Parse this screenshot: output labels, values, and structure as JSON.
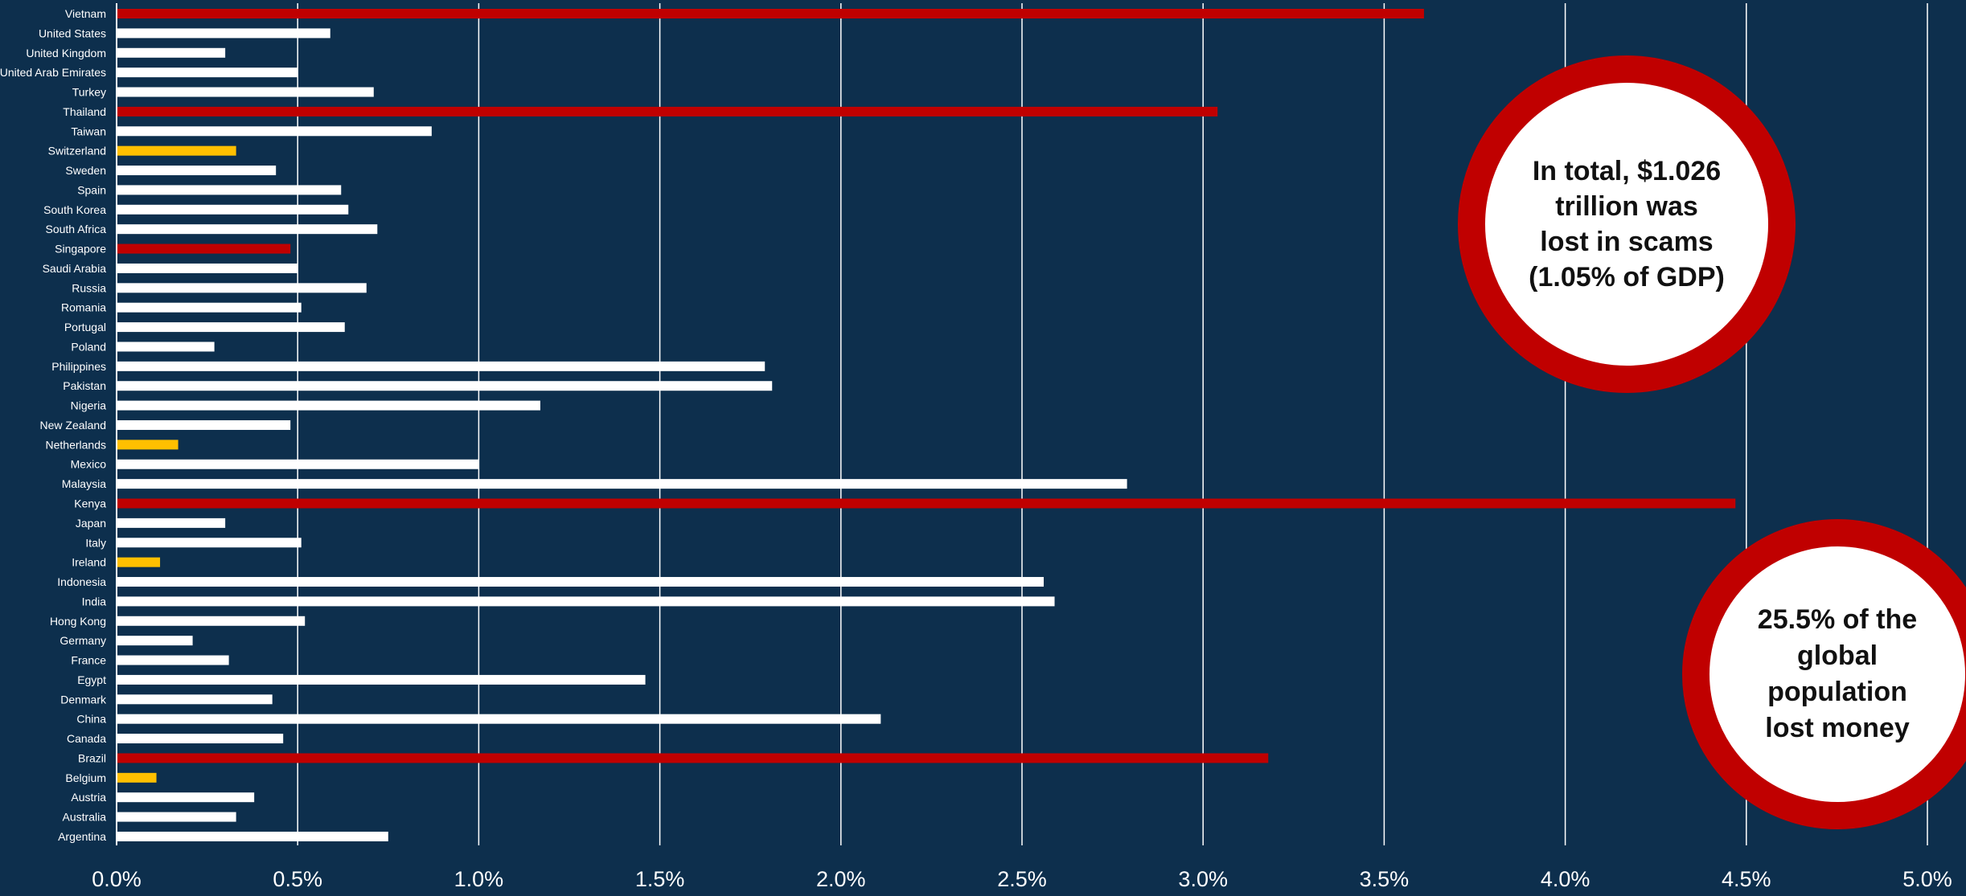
{
  "chart_data": {
    "type": "bar",
    "orientation": "horizontal",
    "categories": [
      "Vietnam",
      "United States",
      "United Kingdom",
      "United Arab Emirates",
      "Turkey",
      "Thailand",
      "Taiwan",
      "Switzerland",
      "Sweden",
      "Spain",
      "South Korea",
      "South Africa",
      "Singapore",
      "Saudi Arabia",
      "Russia",
      "Romania",
      "Portugal",
      "Poland",
      "Philippines",
      "Pakistan",
      "Nigeria",
      "New Zealand",
      "Netherlands",
      "Mexico",
      "Malaysia",
      "Kenya",
      "Japan",
      "Italy",
      "Ireland",
      "Indonesia",
      "India",
      "Hong Kong",
      "Germany",
      "France",
      "Egypt",
      "Denmark",
      "China",
      "Canada",
      "Brazil",
      "Belgium",
      "Austria",
      "Australia",
      "Argentina"
    ],
    "values": [
      3.61,
      0.59,
      0.3,
      0.5,
      0.71,
      3.04,
      0.87,
      0.33,
      0.44,
      0.62,
      0.64,
      0.72,
      0.48,
      0.5,
      0.69,
      0.51,
      0.63,
      0.27,
      1.79,
      1.81,
      1.17,
      0.48,
      0.17,
      1.0,
      2.79,
      4.47,
      0.3,
      0.51,
      0.12,
      2.56,
      2.59,
      0.52,
      0.21,
      0.31,
      1.46,
      0.43,
      2.11,
      0.46,
      3.18,
      0.11,
      0.38,
      0.33,
      0.75
    ],
    "highlight": [
      "red",
      "white",
      "white",
      "white",
      "white",
      "red",
      "white",
      "yellow",
      "white",
      "white",
      "white",
      "white",
      "red",
      "white",
      "white",
      "white",
      "white",
      "white",
      "white",
      "white",
      "white",
      "white",
      "yellow",
      "white",
      "white",
      "red",
      "white",
      "white",
      "yellow",
      "white",
      "white",
      "white",
      "white",
      "white",
      "white",
      "white",
      "white",
      "white",
      "red",
      "yellow",
      "white",
      "white",
      "white"
    ],
    "highlight_colors": {
      "red": "#c00000",
      "white": "#ffffff",
      "yellow": "#ffc000"
    },
    "xlim": [
      0,
      5
    ],
    "x_ticks": [
      "0.0%",
      "0.5%",
      "1.0%",
      "1.5%",
      "2.0%",
      "2.5%",
      "3.0%",
      "3.5%",
      "4.0%",
      "4.5%",
      "5.0%"
    ],
    "grid": "vertical",
    "title": "",
    "xlabel": "",
    "ylabel": "",
    "background_color": "#0d2f4d",
    "grid_color": "#ffffff"
  },
  "callouts": {
    "total": "In total, $1.026\ntrillion was\nlost in scams\n(1.05% of GDP)",
    "population": "25.5% of the\nglobal\npopulation\nlost money"
  }
}
